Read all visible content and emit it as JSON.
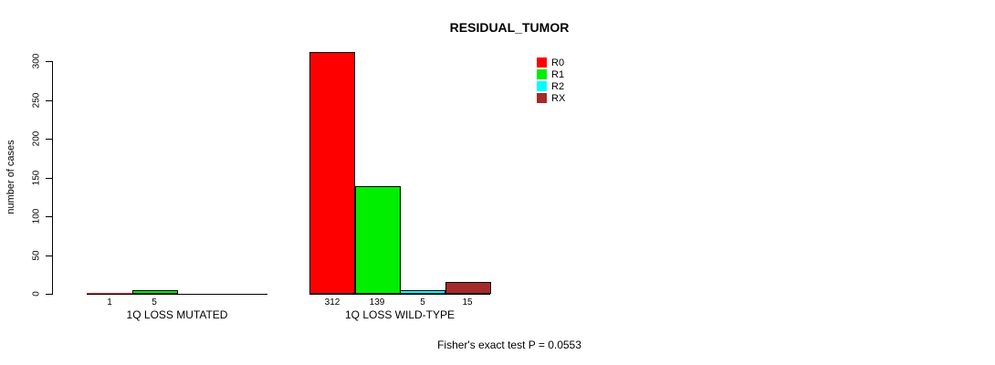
{
  "page": {
    "background": "#ffffff"
  },
  "chart_data": {
    "type": "bar",
    "title": "RESIDUAL_TUMOR",
    "xlabel": "",
    "ylabel": "number of cases",
    "ylim": [
      0,
      300
    ],
    "yticks": [
      0,
      50,
      100,
      150,
      200,
      250,
      300
    ],
    "grid": false,
    "categories": [
      "1Q LOSS MUTATED",
      "1Q LOSS WILD-TYPE"
    ],
    "series": [
      {
        "name": "R0",
        "color": "#FF0000",
        "values": [
          1,
          312
        ]
      },
      {
        "name": "R1",
        "color": "#00EE00",
        "values": [
          5,
          139
        ]
      },
      {
        "name": "R2",
        "color": "#00FFFF",
        "values": [
          0,
          5
        ]
      },
      {
        "name": "RX",
        "color": "#A52A2A",
        "values": [
          0,
          15
        ]
      }
    ],
    "legend": {
      "position": "top-right",
      "entries": [
        "R0",
        "R1",
        "R2",
        "RX"
      ]
    },
    "bar_value_labels": {
      "1Q LOSS MUTATED": [
        "1",
        "5",
        "",
        ""
      ],
      "1Q LOSS WILD-TYPE": [
        "312",
        "139",
        "5",
        "15"
      ]
    },
    "footnote": "Fisher's exact test P = 0.0553"
  }
}
